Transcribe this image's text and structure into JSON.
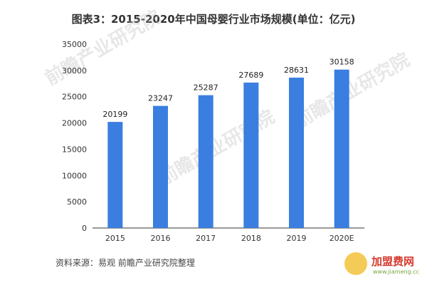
{
  "title": "图表3：2015-2020年中国母婴行业市场规模(单位：亿元)",
  "source": "资料来源：易观 前瞻产业研究院整理",
  "colors": {
    "bar": "#3a7ee0",
    "axis": "#333333"
  },
  "watermark": {
    "text": "前瞻产业研究院",
    "logo_text": "加盟费网",
    "logo_sub": "www.jiameng.cc"
  },
  "chart_data": {
    "type": "bar",
    "title": "图表3：2015-2020年中国母婴行业市场规模(单位：亿元)",
    "categories": [
      "2015",
      "2016",
      "2017",
      "2018",
      "2019",
      "2020E"
    ],
    "values": [
      20199,
      23247,
      25287,
      27689,
      28631,
      30158
    ],
    "ylim": [
      0,
      35000
    ],
    "yticks": [
      0,
      5000,
      10000,
      15000,
      20000,
      25000,
      30000,
      35000
    ],
    "xlabel": "",
    "ylabel": "",
    "grid": false,
    "legend": "none"
  }
}
